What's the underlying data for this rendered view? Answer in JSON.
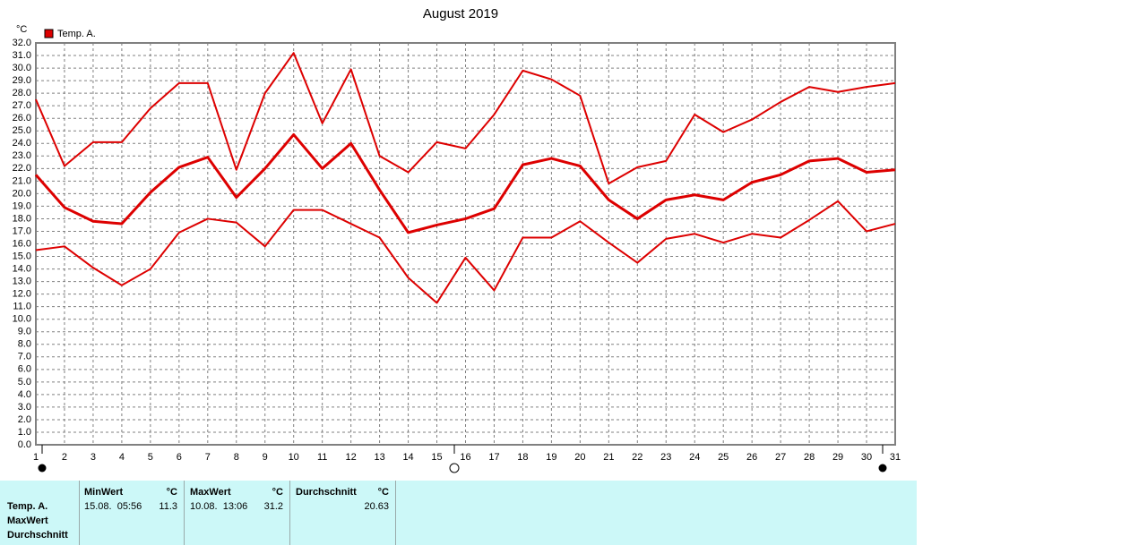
{
  "chart_data": {
    "type": "line",
    "title": "August 2019",
    "y_unit": "°C",
    "legend": "Temp. A.",
    "x": [
      1,
      2,
      3,
      4,
      5,
      6,
      7,
      8,
      9,
      10,
      11,
      12,
      13,
      14,
      15,
      16,
      17,
      18,
      19,
      20,
      21,
      22,
      23,
      24,
      25,
      26,
      27,
      28,
      29,
      30,
      31
    ],
    "xlim": [
      1,
      31
    ],
    "xticks": [
      1,
      2,
      3,
      4,
      5,
      6,
      7,
      8,
      9,
      10,
      11,
      12,
      13,
      14,
      15,
      16,
      17,
      18,
      19,
      20,
      21,
      22,
      23,
      24,
      25,
      26,
      27,
      28,
      29,
      30,
      31
    ],
    "ylim": [
      0,
      32
    ],
    "yticks": [
      {
        "value": 0,
        "label": "0.0"
      },
      {
        "value": 1,
        "label": "1.0"
      },
      {
        "value": 2,
        "label": "2.0"
      },
      {
        "value": 3,
        "label": "3.0"
      },
      {
        "value": 4,
        "label": "4.0"
      },
      {
        "value": 5,
        "label": "5.0"
      },
      {
        "value": 6,
        "label": "6.0"
      },
      {
        "value": 7,
        "label": "7.0"
      },
      {
        "value": 8,
        "label": "8.0"
      },
      {
        "value": 9,
        "label": "9.0"
      },
      {
        "value": 10,
        "label": "10.0"
      },
      {
        "value": 11,
        "label": "11.0"
      },
      {
        "value": 12,
        "label": "12.0"
      },
      {
        "value": 13,
        "label": "13.0"
      },
      {
        "value": 14,
        "label": "14.0"
      },
      {
        "value": 15,
        "label": "15.0"
      },
      {
        "value": 16,
        "label": "16.0"
      },
      {
        "value": 17,
        "label": "17.0"
      },
      {
        "value": 18,
        "label": "18.0"
      },
      {
        "value": 19,
        "label": "19.0"
      },
      {
        "value": 20,
        "label": "20.0"
      },
      {
        "value": 21,
        "label": "21.0"
      },
      {
        "value": 22,
        "label": "22.0"
      },
      {
        "value": 23,
        "label": "23.0"
      },
      {
        "value": 24,
        "label": "24.0"
      },
      {
        "value": 25,
        "label": "25.0"
      },
      {
        "value": 26,
        "label": "26.0"
      },
      {
        "value": 27,
        "label": "27.0"
      },
      {
        "value": 28,
        "label": "28.0"
      },
      {
        "value": 29,
        "label": "29.0"
      },
      {
        "value": 30,
        "label": "30.0"
      },
      {
        "value": 31,
        "label": "31.0"
      },
      {
        "value": 32,
        "label": "32.0"
      }
    ],
    "grid": true,
    "series": [
      {
        "color": "#dd0000",
        "values": [
          27.5,
          22.2,
          24.1,
          24.1,
          26.8,
          28.8,
          28.8,
          21.9,
          28.0,
          31.2,
          25.6,
          29.9,
          23.0,
          21.7,
          24.1,
          23.6,
          26.3,
          29.8,
          29.1,
          27.8,
          20.8,
          22.1,
          22.6,
          26.3,
          24.9,
          25.9,
          27.3,
          28.5,
          28.1,
          28.5,
          28.8
        ]
      },
      {
        "color": "#dd0000",
        "values": [
          21.5,
          18.9,
          17.8,
          17.6,
          20.1,
          22.1,
          22.9,
          19.7,
          22.0,
          24.7,
          22.0,
          24.0,
          20.3,
          16.9,
          17.5,
          18.0,
          18.8,
          22.3,
          22.8,
          22.2,
          19.5,
          18.0,
          19.5,
          19.9,
          19.5,
          20.9,
          21.5,
          22.6,
          22.8,
          21.7,
          21.9
        ]
      },
      {
        "color": "#dd0000",
        "values": [
          15.5,
          15.8,
          14.1,
          12.7,
          14.0,
          16.9,
          18.0,
          17.7,
          15.8,
          18.7,
          18.7,
          17.6,
          16.5,
          13.3,
          11.3,
          14.9,
          12.3,
          16.5,
          16.5,
          17.8,
          16.1,
          14.5,
          16.4,
          16.8,
          16.1,
          16.8,
          16.5,
          17.9,
          19.4,
          17.0,
          17.6
        ]
      }
    ]
  },
  "table": {
    "row_labels": [
      "Temp. A.",
      "MaxWert",
      "Durchschnitt"
    ],
    "columns": [
      {
        "header": "MinWert",
        "unit": "°C",
        "time": "15.08.  05:56",
        "value": 11.3
      },
      {
        "header": "MaxWert",
        "unit": "°C",
        "time": "10.08.  13:06",
        "value": 31.2
      },
      {
        "header": "Durchschnitt",
        "unit": "°C",
        "value": 20.63
      }
    ]
  }
}
